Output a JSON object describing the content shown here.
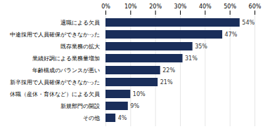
{
  "chart_data": {
    "type": "bar",
    "orientation": "horizontal",
    "categories": [
      "その他",
      "新規部門の開設",
      "休職（産休・育休など）による欠員",
      "新卒採用で人員確保ができなかった",
      "年齢構成のバランスが悪い",
      "業績好調による業務量増加",
      "既存業務の拡大",
      "中途採用で人員確保ができなかった",
      "退職による欠員"
    ],
    "values": [
      4,
      9,
      10,
      21,
      22,
      31,
      35,
      47,
      54
    ],
    "value_labels": [
      "4%",
      "9%",
      "10%",
      "21%",
      "22%",
      "31%",
      "35%",
      "47%",
      "54%"
    ],
    "data_labels": true,
    "color": "#1a2e5a",
    "xlim": [
      0,
      60
    ],
    "xticks": [
      {
        "value": 0,
        "label": "0%"
      },
      {
        "value": 10,
        "label": "10%"
      },
      {
        "value": 20,
        "label": "20%"
      },
      {
        "value": 30,
        "label": "30%"
      },
      {
        "value": 40,
        "label": "40%"
      },
      {
        "value": 50,
        "label": "50%"
      },
      {
        "value": 60,
        "label": "60%"
      }
    ],
    "grid": true
  }
}
